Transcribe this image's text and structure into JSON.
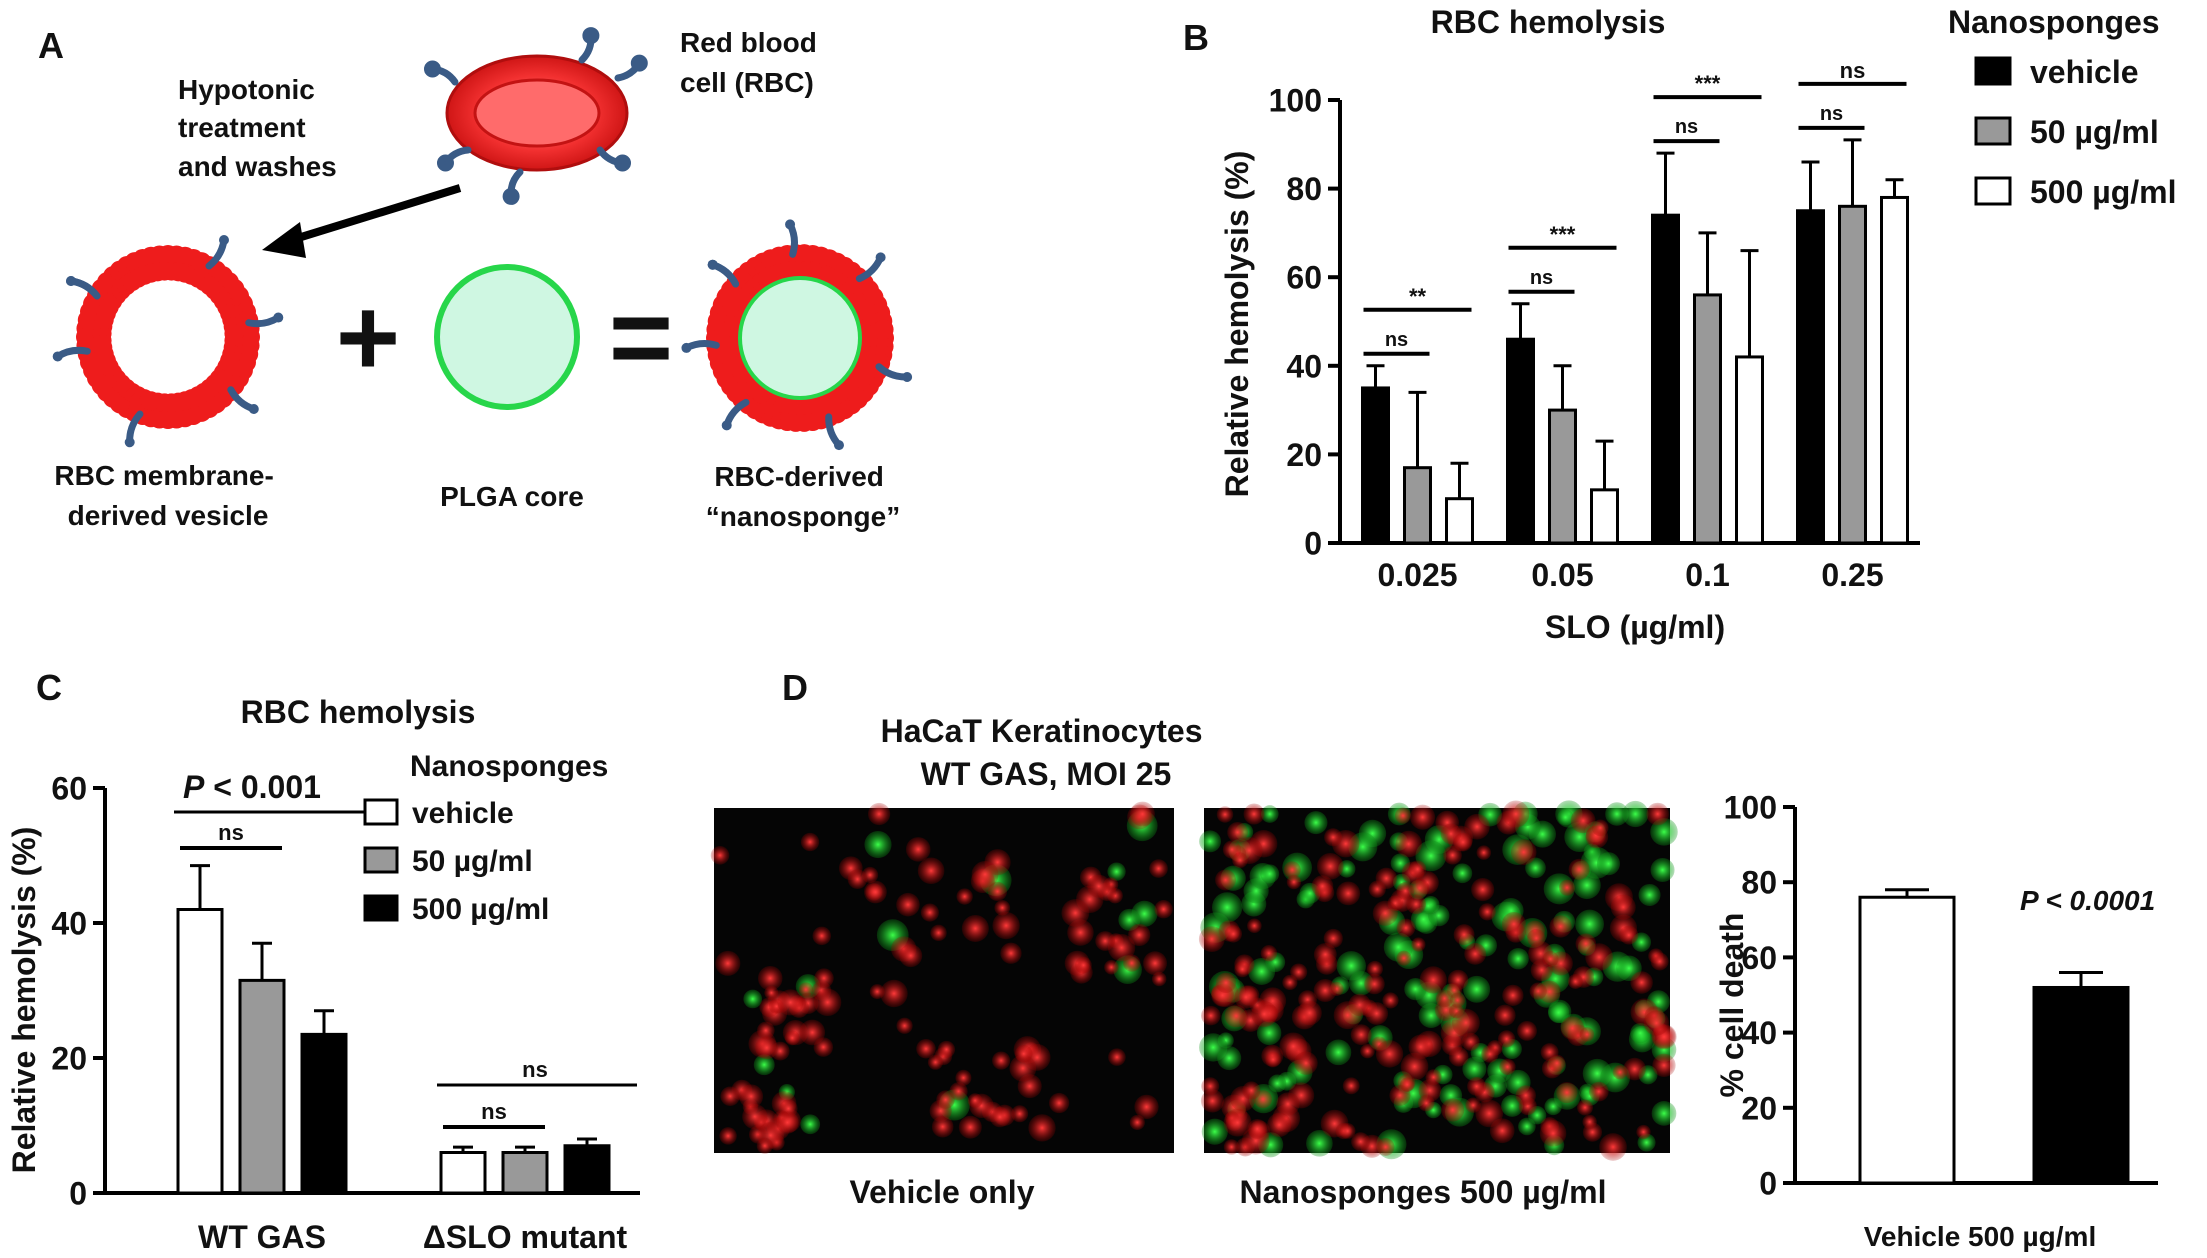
{
  "panels": {
    "A": {
      "letter": "A",
      "rbc_label": [
        "Red blood",
        "cell (RBC)"
      ],
      "treatment_label": [
        "Hypotonic",
        "treatment",
        "and washes"
      ],
      "vesicle_label": [
        "RBC membrane-",
        "derived vesicle"
      ],
      "core_label": "PLGA core",
      "nanosponge_label": [
        "RBC-derived",
        "“nanosponge”"
      ],
      "plus": "+",
      "equals": "=",
      "colors": {
        "membrane": "#ee1c1c",
        "protein": "#3a5b86",
        "core": "#cff7e2",
        "core_stroke": "#27d64a"
      }
    },
    "B": {
      "letter": "B"
    },
    "C": {
      "letter": "C"
    },
    "D": {
      "letter": "D",
      "title": [
        "HaCaT Keratinocytes",
        "WT GAS, MOI 25"
      ],
      "image_labels": [
        "Vehicle only",
        "Nanosponges 500 µg/ml"
      ],
      "images": [
        "fluorescence-micrograph-vehicle",
        "fluorescence-micrograph-nanosponges"
      ]
    }
  },
  "chart_data": [
    {
      "id": "B",
      "type": "bar",
      "title": "RBC hemolysis",
      "xlabel": "SLO (µg/ml)",
      "ylabel": "Relative hemolysis (%)",
      "ylim": [
        0,
        100
      ],
      "yticks": [
        0,
        20,
        40,
        60,
        80,
        100
      ],
      "categories": [
        "0.025",
        "0.05",
        "0.1",
        "0.25"
      ],
      "legend_title": "Nanosponges",
      "legend_position": "top-right",
      "series": [
        {
          "name": "vehicle",
          "fill": "#000000",
          "values": [
            35,
            46,
            74,
            75
          ],
          "errors": [
            5,
            8,
            14,
            11
          ]
        },
        {
          "name": "50 µg/ml",
          "fill": "#999999",
          "values": [
            17,
            30,
            56,
            76
          ],
          "errors": [
            17,
            10,
            14,
            15
          ]
        },
        {
          "name": "500 µg/ml",
          "fill": "#ffffff",
          "values": [
            10,
            12,
            42,
            78
          ],
          "errors": [
            8,
            11,
            24,
            4
          ]
        }
      ],
      "annotations": [
        {
          "group": 0,
          "from": 0,
          "to": 1,
          "text": "ns"
        },
        {
          "group": 0,
          "from": 0,
          "to": 2,
          "text": "**"
        },
        {
          "group": 1,
          "from": 0,
          "to": 1,
          "text": "ns"
        },
        {
          "group": 1,
          "from": 0,
          "to": 2,
          "text": "***"
        },
        {
          "group": 2,
          "from": 0,
          "to": 1,
          "text": "ns"
        },
        {
          "group": 2,
          "from": 0,
          "to": 2,
          "text": "***"
        },
        {
          "group": 3,
          "from": 0,
          "to": 1,
          "text": "ns"
        },
        {
          "group": 3,
          "from": 0,
          "to": 2,
          "text": "ns"
        }
      ]
    },
    {
      "id": "C",
      "type": "bar",
      "title": "RBC hemolysis",
      "xlabel": "",
      "ylabel": "Relative hemolysis (%)",
      "ylim": [
        0,
        60
      ],
      "yticks": [
        0,
        20,
        40,
        60
      ],
      "categories": [
        "WT GAS",
        "ΔSLO mutant"
      ],
      "legend_title": "Nanosponges",
      "legend_position": "top-right",
      "series": [
        {
          "name": "vehicle",
          "fill": "#ffffff",
          "values": [
            42,
            6
          ],
          "errors": [
            6.5,
            0.8
          ]
        },
        {
          "name": "50 µg/ml",
          "fill": "#999999",
          "values": [
            31.5,
            6
          ],
          "errors": [
            5.5,
            0.8
          ]
        },
        {
          "name": "500 µg/ml",
          "fill": "#000000",
          "values": [
            23.5,
            7
          ],
          "errors": [
            3.5,
            1
          ]
        }
      ],
      "annotations": [
        {
          "group": 0,
          "from": 0,
          "to": 1,
          "text": "ns"
        },
        {
          "group": 0,
          "from": 0,
          "to": 2,
          "text": "P < 0.001"
        },
        {
          "group": 1,
          "from": 0,
          "to": 1,
          "text": "ns"
        },
        {
          "group": 1,
          "from": 0,
          "to": 2,
          "text": "ns"
        }
      ]
    },
    {
      "id": "D",
      "type": "bar",
      "title": "",
      "xlabel": "",
      "ylabel": "% cell death",
      "ylim": [
        0,
        100
      ],
      "yticks": [
        0,
        20,
        40,
        60,
        80,
        100
      ],
      "categories": [
        "Vehicle",
        "500 µg/ml"
      ],
      "series": [
        {
          "name": "",
          "values": [
            76,
            52
          ],
          "errors": [
            2,
            4
          ],
          "fills": [
            "#ffffff",
            "#000000"
          ]
        }
      ],
      "annotation": "P < 0.0001"
    }
  ]
}
